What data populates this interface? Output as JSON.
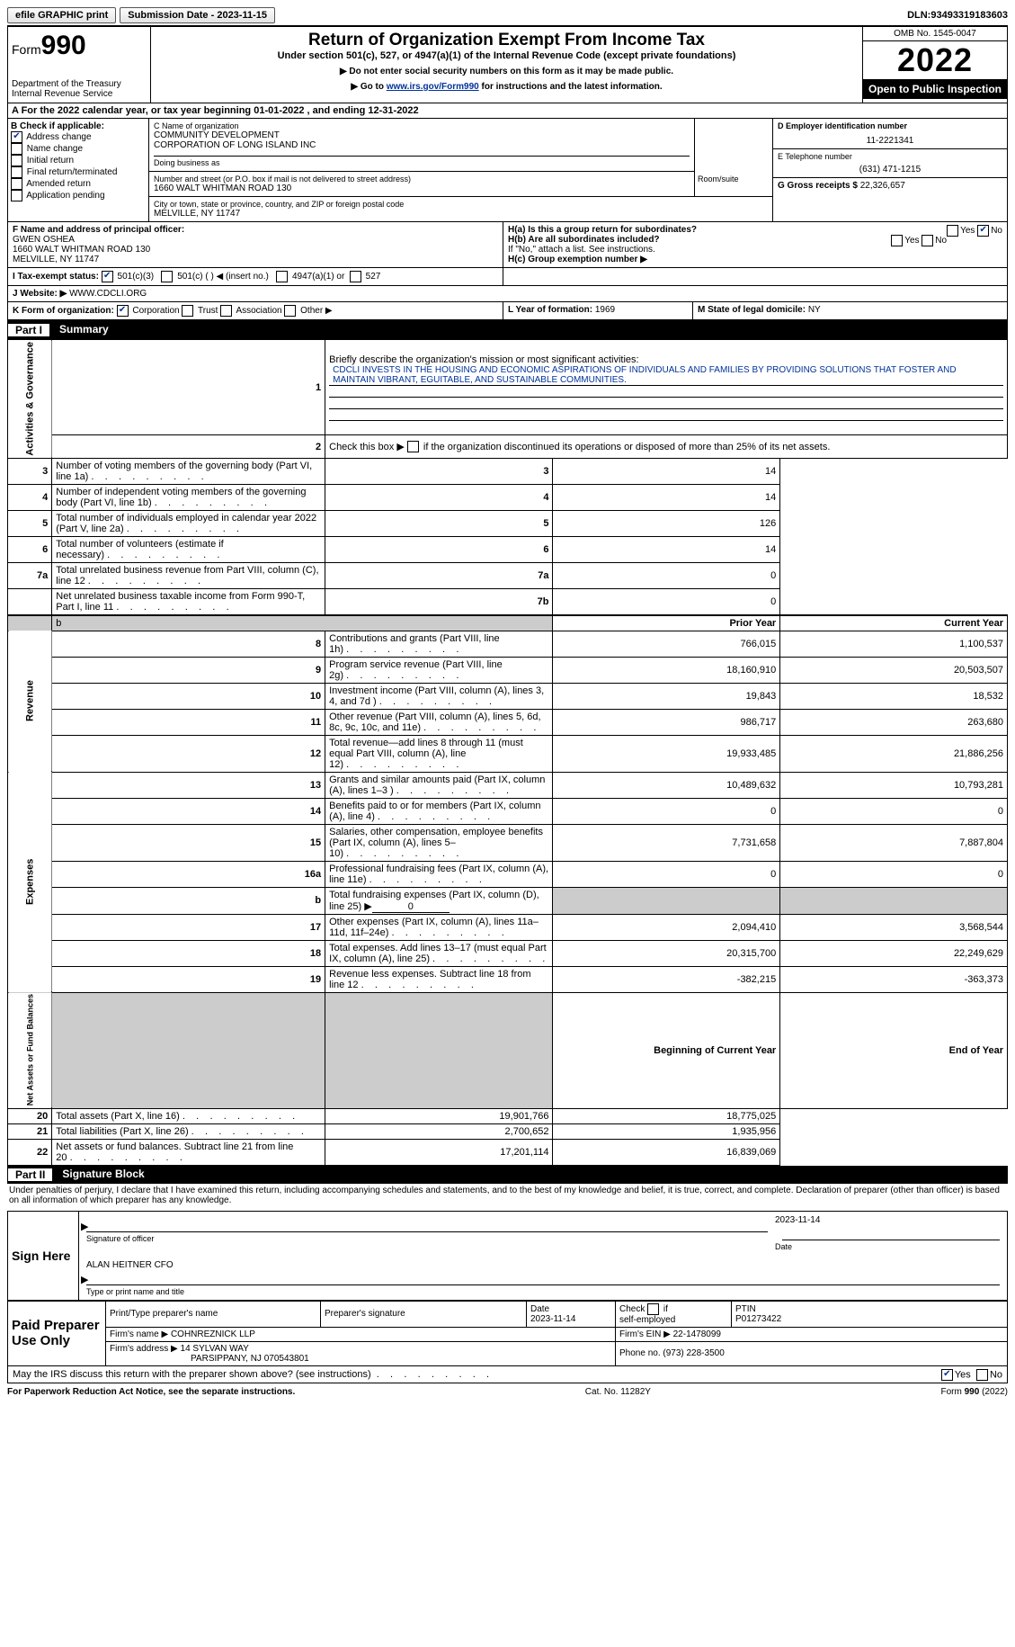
{
  "topbar": {
    "efile": "efile GRAPHIC print",
    "submission_label": "Submission Date - ",
    "submission_date": "2023-11-15",
    "dln_label": "DLN: ",
    "dln": "93493319183603"
  },
  "header": {
    "form_word": "Form",
    "form_number": "990",
    "dept": "Department of the Treasury",
    "irs": "Internal Revenue Service",
    "title": "Return of Organization Exempt From Income Tax",
    "subtitle": "Under section 501(c), 527, or 4947(a)(1) of the Internal Revenue Code (except private foundations)",
    "note1": "▶ Do not enter social security numbers on this form as it may be made public.",
    "note2_pre": "▶ Go to ",
    "note2_link": "www.irs.gov/Form990",
    "note2_post": " for instructions and the latest information.",
    "omb": "OMB No. 1545-0047",
    "year": "2022",
    "open": "Open to Public Inspection"
  },
  "rowA": {
    "text_pre": "A For the 2022 calendar year, or tax year beginning ",
    "begin": "01-01-2022",
    "mid": "  , and ending ",
    "end": "12-31-2022"
  },
  "colB": {
    "label": "B Check if applicable:",
    "items": [
      {
        "label": "Address change",
        "checked": true
      },
      {
        "label": "Name change",
        "checked": false
      },
      {
        "label": "Initial return",
        "checked": false
      },
      {
        "label": "Final return/terminated",
        "checked": false
      },
      {
        "label": "Amended return",
        "checked": false
      },
      {
        "label": "Application pending",
        "checked": false
      }
    ]
  },
  "colC": {
    "name_label": "C Name of organization",
    "name1": "COMMUNITY DEVELOPMENT",
    "name2": "CORPORATION OF LONG ISLAND INC",
    "dba_label": "Doing business as",
    "addr_label": "Number and street (or P.O. box if mail is not delivered to street address)",
    "room_label": "Room/suite",
    "addr": "1660 WALT WHITMAN ROAD 130",
    "city_label": "City or town, state or province, country, and ZIP or foreign postal code",
    "city": "MELVILLE, NY  11747"
  },
  "colD": {
    "ein_label": "D Employer identification number",
    "ein": "11-2221341",
    "phone_label": "E Telephone number",
    "phone": "(631) 471-1215",
    "gross_label": "G Gross receipts $ ",
    "gross": "22,326,657"
  },
  "rowF": {
    "label": "F  Name and address of principal officer:",
    "name": "GWEN OSHEA",
    "addr": "1660 WALT WHITMAN ROAD 130",
    "city": "MELVILLE, NY  11747"
  },
  "rowH": {
    "ha": "H(a)  Is this a group return for subordinates?",
    "ha_yes": "Yes",
    "ha_no": "No",
    "ha_no_checked": true,
    "hb": "H(b)  Are all subordinates included?",
    "hb_note": "If \"No,\" attach a list. See instructions.",
    "hc": "H(c)  Group exemption number ▶"
  },
  "rowI": {
    "label": "I  Tax-exempt status:",
    "o1": "501(c)(3)",
    "o1_checked": true,
    "o2": "501(c) (   ) ◀ (insert no.)",
    "o3": "4947(a)(1) or",
    "o4": "527"
  },
  "rowJ": {
    "label": "J  Website: ▶",
    "value": "WWW.CDCLI.ORG"
  },
  "rowK": {
    "label": "K Form of organization:",
    "corp": "Corporation",
    "corp_checked": true,
    "trust": "Trust",
    "assoc": "Association",
    "other": "Other ▶"
  },
  "rowL": {
    "label": "L Year of formation: ",
    "value": "1969"
  },
  "rowM": {
    "label": "M State of legal domicile: ",
    "value": "NY"
  },
  "part1": {
    "title": "Part I",
    "name": "Summary",
    "l1_label": "Briefly describe the organization's mission or most significant activities:",
    "l1_text": "CDCLI INVESTS IN THE HOUSING AND ECONOMIC ASPIRATIONS OF INDIVIDUALS AND FAMILIES BY PROVIDING SOLUTIONS THAT FOSTER AND MAINTAIN VIBRANT, EGUITABLE, AND SUSTAINABLE COMMUNITIES.",
    "l2": "Check this box ▶        if the organization discontinued its operations or disposed of more than 25% of its net assets.",
    "sideA": "Activities & Governance",
    "sideB": "Revenue",
    "sideC": "Expenses",
    "sideD": "Net Assets or Fund Balances",
    "rows_ag": [
      {
        "n": "3",
        "t": "Number of voting members of the governing body (Part VI, line 1a)",
        "k": "3",
        "v": "14"
      },
      {
        "n": "4",
        "t": "Number of independent voting members of the governing body (Part VI, line 1b)",
        "k": "4",
        "v": "14"
      },
      {
        "n": "5",
        "t": "Total number of individuals employed in calendar year 2022 (Part V, line 2a)",
        "k": "5",
        "v": "126"
      },
      {
        "n": "6",
        "t": "Total number of volunteers (estimate if necessary)",
        "k": "6",
        "v": "14"
      },
      {
        "n": "7a",
        "t": "Total unrelated business revenue from Part VIII, column (C), line 12",
        "k": "7a",
        "v": "0"
      },
      {
        "n": "",
        "t": "Net unrelated business taxable income from Form 990-T, Part I, line 11",
        "k": "7b",
        "v": "0"
      }
    ],
    "hdr_prior": "Prior Year",
    "hdr_curr": "Current Year",
    "rows_rev": [
      {
        "n": "8",
        "t": "Contributions and grants (Part VIII, line 1h)",
        "p": "766,015",
        "c": "1,100,537"
      },
      {
        "n": "9",
        "t": "Program service revenue (Part VIII, line 2g)",
        "p": "18,160,910",
        "c": "20,503,507"
      },
      {
        "n": "10",
        "t": "Investment income (Part VIII, column (A), lines 3, 4, and 7d )",
        "p": "19,843",
        "c": "18,532"
      },
      {
        "n": "11",
        "t": "Other revenue (Part VIII, column (A), lines 5, 6d, 8c, 9c, 10c, and 11e)",
        "p": "986,717",
        "c": "263,680"
      },
      {
        "n": "12",
        "t": "Total revenue—add lines 8 through 11 (must equal Part VIII, column (A), line 12)",
        "p": "19,933,485",
        "c": "21,886,256"
      }
    ],
    "rows_exp": [
      {
        "n": "13",
        "t": "Grants and similar amounts paid (Part IX, column (A), lines 1–3 )",
        "p": "10,489,632",
        "c": "10,793,281"
      },
      {
        "n": "14",
        "t": "Benefits paid to or for members (Part IX, column (A), line 4)",
        "p": "0",
        "c": "0"
      },
      {
        "n": "15",
        "t": "Salaries, other compensation, employee benefits (Part IX, column (A), lines 5–10)",
        "p": "7,731,658",
        "c": "7,887,804"
      },
      {
        "n": "16a",
        "t": "Professional fundraising fees (Part IX, column (A), line 11e)",
        "p": "0",
        "c": "0"
      },
      {
        "n": "b",
        "t": "Total fundraising expenses (Part IX, column (D), line 25) ▶",
        "p": "grey",
        "c": "grey",
        "fund": "0"
      },
      {
        "n": "17",
        "t": "Other expenses (Part IX, column (A), lines 11a–11d, 11f–24e)",
        "p": "2,094,410",
        "c": "3,568,544"
      },
      {
        "n": "18",
        "t": "Total expenses. Add lines 13–17 (must equal Part IX, column (A), line 25)",
        "p": "20,315,700",
        "c": "22,249,629"
      },
      {
        "n": "19",
        "t": "Revenue less expenses. Subtract line 18 from line 12",
        "p": "-382,215",
        "c": "-363,373"
      }
    ],
    "hdr_beg": "Beginning of Current Year",
    "hdr_end": "End of Year",
    "rows_net": [
      {
        "n": "20",
        "t": "Total assets (Part X, line 16)",
        "p": "19,901,766",
        "c": "18,775,025"
      },
      {
        "n": "21",
        "t": "Total liabilities (Part X, line 26)",
        "p": "2,700,652",
        "c": "1,935,956"
      },
      {
        "n": "22",
        "t": "Net assets or fund balances. Subtract line 21 from line 20",
        "p": "17,201,114",
        "c": "16,839,069"
      }
    ]
  },
  "part2": {
    "title": "Part II",
    "name": "Signature Block",
    "decl": "Under penalties of perjury, I declare that I have examined this return, including accompanying schedules and statements, and to the best of my knowledge and belief, it is true, correct, and complete. Declaration of preparer (other than officer) is based on all information of which preparer has any knowledge.",
    "sign_here": "Sign Here",
    "sig_officer": "Signature of officer",
    "sig_date": "Date",
    "sig_date_val": "2023-11-14",
    "name_title": "ALAN HEITNER CFO",
    "name_title_lbl": "Type or print name and title",
    "paid": "Paid Preparer Use Only",
    "prep_name_lbl": "Print/Type preparer's name",
    "prep_sig_lbl": "Preparer's signature",
    "prep_date_lbl": "Date",
    "prep_date": "2023-11-14",
    "self_emp": "Check         if self-employed",
    "ptin_lbl": "PTIN",
    "ptin": "P01273422",
    "firm_name_lbl": "Firm's name    ▶ ",
    "firm_name": "COHNREZNICK LLP",
    "firm_ein_lbl": "Firm's EIN ▶ ",
    "firm_ein": "22-1478099",
    "firm_addr_lbl": "Firm's address ▶ ",
    "firm_addr1": "14 SYLVAN WAY",
    "firm_addr2": "PARSIPPANY, NJ  070543801",
    "phone_lbl": "Phone no. ",
    "phone": "(973) 228-3500",
    "discuss": "May the IRS discuss this return with the preparer shown above? (see instructions)",
    "discuss_yes": "Yes",
    "discuss_no": "No",
    "discuss_yes_checked": true
  },
  "footer": {
    "left": "For Paperwork Reduction Act Notice, see the separate instructions.",
    "mid": "Cat. No. 11282Y",
    "right": "Form 990 (2022)"
  }
}
